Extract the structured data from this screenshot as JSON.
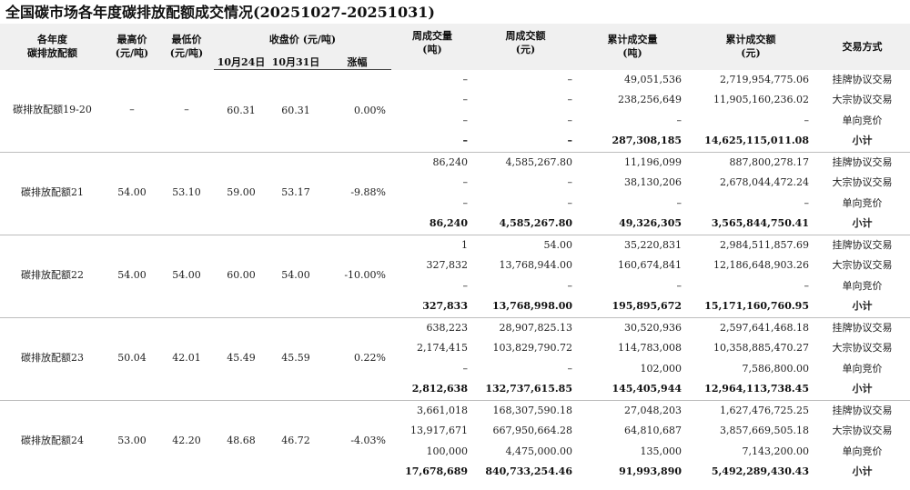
{
  "title": "全国碳市场各年度碳排放配额成交情况(20251027-20251031)",
  "headers": {
    "year_allowance": "各年度\n碳排放配额",
    "high": "最高价\n(元/吨)",
    "low": "最低价\n(元/吨)",
    "close": "收盘价 (元/吨)",
    "close_1024": "10月24日",
    "close_1031": "10月31日",
    "change": "涨幅",
    "week_vol": "周成交量\n(吨)",
    "week_amt": "周成交额\n(元)",
    "cum_vol": "累计成交量\n(吨)",
    "cum_amt": "累计成交额\n(元)",
    "method": "交易方式"
  },
  "groups": [
    {
      "name": "碳排放配额19-20",
      "high": "–",
      "low": "–",
      "c1": "60.31",
      "c2": "60.31",
      "chg": "0.00%",
      "rows": [
        {
          "wv": "–",
          "wa": "–",
          "cv": "49,051,536",
          "ca": "2,719,954,775.06",
          "m": "挂牌协议交易"
        },
        {
          "wv": "–",
          "wa": "–",
          "cv": "238,256,649",
          "ca": "11,905,160,236.02",
          "m": "大宗协议交易"
        },
        {
          "wv": "–",
          "wa": "–",
          "cv": "–",
          "ca": "–",
          "m": "单向竞价"
        },
        {
          "wv": "–",
          "wa": "–",
          "cv": "287,308,185",
          "ca": "14,625,115,011.08",
          "m": "小计"
        }
      ]
    },
    {
      "name": "碳排放配额21",
      "high": "54.00",
      "low": "53.10",
      "c1": "59.00",
      "c2": "53.17",
      "chg": "-9.88%",
      "rows": [
        {
          "wv": "86,240",
          "wa": "4,585,267.80",
          "cv": "11,196,099",
          "ca": "887,800,278.17",
          "m": "挂牌协议交易"
        },
        {
          "wv": "–",
          "wa": "–",
          "cv": "38,130,206",
          "ca": "2,678,044,472.24",
          "m": "大宗协议交易"
        },
        {
          "wv": "–",
          "wa": "–",
          "cv": "–",
          "ca": "–",
          "m": "单向竞价"
        },
        {
          "wv": "86,240",
          "wa": "4,585,267.80",
          "cv": "49,326,305",
          "ca": "3,565,844,750.41",
          "m": "小计"
        }
      ]
    },
    {
      "name": "碳排放配额22",
      "high": "54.00",
      "low": "54.00",
      "c1": "60.00",
      "c2": "54.00",
      "chg": "-10.00%",
      "rows": [
        {
          "wv": "1",
          "wa": "54.00",
          "cv": "35,220,831",
          "ca": "2,984,511,857.69",
          "m": "挂牌协议交易"
        },
        {
          "wv": "327,832",
          "wa": "13,768,944.00",
          "cv": "160,674,841",
          "ca": "12,186,648,903.26",
          "m": "大宗协议交易"
        },
        {
          "wv": "–",
          "wa": "–",
          "cv": "–",
          "ca": "–",
          "m": "单向竞价"
        },
        {
          "wv": "327,833",
          "wa": "13,768,998.00",
          "cv": "195,895,672",
          "ca": "15,171,160,760.95",
          "m": "小计"
        }
      ]
    },
    {
      "name": "碳排放配额23",
      "high": "50.04",
      "low": "42.01",
      "c1": "45.49",
      "c2": "45.59",
      "chg": "0.22%",
      "rows": [
        {
          "wv": "638,223",
          "wa": "28,907,825.13",
          "cv": "30,520,936",
          "ca": "2,597,641,468.18",
          "m": "挂牌协议交易"
        },
        {
          "wv": "2,174,415",
          "wa": "103,829,790.72",
          "cv": "114,783,008",
          "ca": "10,358,885,470.27",
          "m": "大宗协议交易"
        },
        {
          "wv": "–",
          "wa": "–",
          "cv": "102,000",
          "ca": "7,586,800.00",
          "m": "单向竞价"
        },
        {
          "wv": "2,812,638",
          "wa": "132,737,615.85",
          "cv": "145,405,944",
          "ca": "12,964,113,738.45",
          "m": "小计"
        }
      ]
    },
    {
      "name": "碳排放配额24",
      "high": "53.00",
      "low": "42.20",
      "c1": "48.68",
      "c2": "46.72",
      "chg": "-4.03%",
      "rows": [
        {
          "wv": "3,661,018",
          "wa": "168,307,590.18",
          "cv": "27,048,203",
          "ca": "1,627,476,725.25",
          "m": "挂牌协议交易"
        },
        {
          "wv": "13,917,671",
          "wa": "667,950,664.28",
          "cv": "64,810,687",
          "ca": "3,857,669,505.18",
          "m": "大宗协议交易"
        },
        {
          "wv": "100,000",
          "wa": "4,475,000.00",
          "cv": "135,000",
          "ca": "7,143,200.00",
          "m": "单向竞价"
        },
        {
          "wv": "17,678,689",
          "wa": "840,733,254.46",
          "cv": "91,993,890",
          "ca": "5,492,289,430.43",
          "m": "小计"
        }
      ]
    }
  ]
}
